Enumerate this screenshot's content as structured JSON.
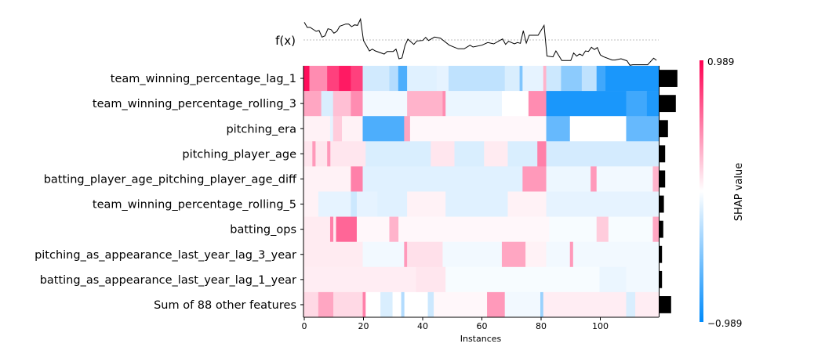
{
  "chart_data": {
    "type": "heatmap",
    "xlabel": "Instances",
    "x_ticks": [
      0,
      20,
      40,
      60,
      80,
      100
    ],
    "n_instances": 120,
    "fx_label": "f(x)",
    "colorbar": {
      "label": "SHAP value",
      "max_label": "0.989",
      "min_label": "−0.989",
      "max": 0.989,
      "min": -0.989,
      "colors": {
        "negative": "#008bfb",
        "zero": "#ffffff",
        "positive": "#ff0052"
      }
    },
    "features": [
      "team_winning_percentage_lag_1",
      "team_winning_percentage_rolling_3",
      "pitching_era",
      "pitching_player_age",
      "batting_player_age_pitching_player_age_diff",
      "team_winning_percentage_rolling_5",
      "batting_ops",
      "pitching_as_appearance_last_year_lag_3_year",
      "batting_as_appearance_last_year_lag_1_year",
      "Sum of 88 other features"
    ],
    "mean_abs_importance": [
      0.57,
      0.52,
      0.27,
      0.18,
      0.18,
      0.14,
      0.12,
      0.08,
      0.08,
      0.37
    ],
    "rows_segments": [
      [
        [
          0,
          2,
          0.95
        ],
        [
          2,
          8,
          0.45
        ],
        [
          8,
          12,
          0.75
        ],
        [
          12,
          16,
          0.9
        ],
        [
          16,
          20,
          0.75
        ],
        [
          20,
          29,
          -0.18
        ],
        [
          29,
          32,
          -0.3
        ],
        [
          32,
          35,
          -0.7
        ],
        [
          35,
          45,
          -0.12
        ],
        [
          45,
          49,
          -0.1
        ],
        [
          49,
          68,
          -0.25
        ],
        [
          68,
          73,
          -0.15
        ],
        [
          73,
          74,
          -0.5
        ],
        [
          74,
          81,
          -0.1
        ],
        [
          81,
          82,
          0.3
        ],
        [
          82,
          87,
          -0.2
        ],
        [
          87,
          94,
          -0.45
        ],
        [
          94,
          99,
          -0.25
        ],
        [
          99,
          102,
          -0.75
        ],
        [
          102,
          120,
          -0.9
        ]
      ],
      [
        [
          0,
          6,
          0.35
        ],
        [
          6,
          10,
          -0.15
        ],
        [
          10,
          16,
          0.25
        ],
        [
          16,
          20,
          0.45
        ],
        [
          20,
          35,
          -0.05
        ],
        [
          35,
          47,
          0.3
        ],
        [
          47,
          48,
          0.45
        ],
        [
          48,
          67,
          -0.08
        ],
        [
          67,
          76,
          0.0
        ],
        [
          76,
          82,
          0.45
        ],
        [
          82,
          109,
          -0.9
        ],
        [
          109,
          116,
          -0.75
        ],
        [
          116,
          120,
          -0.88
        ]
      ],
      [
        [
          0,
          9,
          0.05
        ],
        [
          9,
          10,
          -0.1
        ],
        [
          10,
          13,
          0.2
        ],
        [
          13,
          20,
          0.05
        ],
        [
          20,
          34,
          -0.7
        ],
        [
          34,
          36,
          0.35
        ],
        [
          36,
          82,
          0.03
        ],
        [
          82,
          90,
          -0.6
        ],
        [
          90,
          109,
          0.0
        ],
        [
          109,
          120,
          -0.6
        ]
      ],
      [
        [
          0,
          21,
          0.1
        ],
        [
          3,
          4,
          0.4
        ],
        [
          8,
          9,
          0.4
        ],
        [
          21,
          43,
          -0.15
        ],
        [
          43,
          51,
          0.1
        ],
        [
          51,
          61,
          -0.15
        ],
        [
          61,
          69,
          0.08
        ],
        [
          69,
          79,
          -0.15
        ],
        [
          79,
          82,
          0.5
        ],
        [
          82,
          120,
          -0.17
        ]
      ],
      [
        [
          0,
          16,
          0.05
        ],
        [
          16,
          20,
          0.5
        ],
        [
          20,
          74,
          -0.12
        ],
        [
          74,
          82,
          0.4
        ],
        [
          82,
          97,
          -0.07
        ],
        [
          97,
          99,
          0.4
        ],
        [
          99,
          118,
          -0.05
        ],
        [
          118,
          120,
          0.3
        ]
      ],
      [
        [
          0,
          5,
          0.05
        ],
        [
          5,
          16,
          -0.1
        ],
        [
          16,
          18,
          -0.2
        ],
        [
          18,
          25,
          -0.1
        ],
        [
          25,
          35,
          -0.12
        ],
        [
          35,
          48,
          0.05
        ],
        [
          48,
          69,
          -0.12
        ],
        [
          69,
          82,
          0.05
        ],
        [
          82,
          120,
          -0.1
        ]
      ],
      [
        [
          0,
          11,
          0.08
        ],
        [
          9,
          10,
          0.5
        ],
        [
          11,
          18,
          0.6
        ],
        [
          18,
          83,
          0.03
        ],
        [
          29,
          32,
          0.3
        ],
        [
          83,
          99,
          -0.03
        ],
        [
          99,
          103,
          0.2
        ],
        [
          103,
          118,
          -0.03
        ],
        [
          118,
          120,
          0.35
        ]
      ],
      [
        [
          0,
          20,
          0.08
        ],
        [
          20,
          34,
          -0.05
        ],
        [
          34,
          35,
          0.4
        ],
        [
          35,
          47,
          0.12
        ],
        [
          47,
          67,
          -0.05
        ],
        [
          67,
          75,
          0.35
        ],
        [
          75,
          82,
          0.05
        ],
        [
          82,
          120,
          -0.05
        ],
        [
          90,
          91,
          0.4
        ]
      ],
      [
        [
          0,
          38,
          0.07
        ],
        [
          38,
          48,
          0.1
        ],
        [
          48,
          100,
          -0.03
        ],
        [
          100,
          109,
          -0.08
        ],
        [
          109,
          120,
          -0.05
        ]
      ],
      [
        [
          0,
          20,
          0.15
        ],
        [
          5,
          10,
          0.35
        ],
        [
          20,
          21,
          0.5
        ],
        [
          21,
          42,
          0.0
        ],
        [
          26,
          30,
          -0.15
        ],
        [
          33,
          34,
          -0.3
        ],
        [
          42,
          44,
          -0.2
        ],
        [
          44,
          62,
          0.03
        ],
        [
          62,
          68,
          0.4
        ],
        [
          68,
          80,
          -0.05
        ],
        [
          80,
          81,
          -0.4
        ],
        [
          81,
          120,
          0.07
        ],
        [
          109,
          112,
          -0.15
        ]
      ]
    ],
    "fx_points": [
      [
        0,
        0.68
      ],
      [
        1,
        0.48
      ],
      [
        2,
        0.48
      ],
      [
        4,
        0.33
      ],
      [
        5,
        0.36
      ],
      [
        6,
        0.11
      ],
      [
        7,
        0.16
      ],
      [
        8,
        0.43
      ],
      [
        9,
        0.4
      ],
      [
        10,
        0.26
      ],
      [
        11,
        0.33
      ],
      [
        12,
        0.53
      ],
      [
        14,
        0.61
      ],
      [
        15,
        0.61
      ],
      [
        16,
        0.51
      ],
      [
        17,
        0.58
      ],
      [
        18,
        0.56
      ],
      [
        19,
        0.8
      ],
      [
        20,
        -0.02
      ],
      [
        22,
        -0.42
      ],
      [
        23,
        -0.35
      ],
      [
        24,
        -0.42
      ],
      [
        27,
        -0.54
      ],
      [
        28,
        -0.44
      ],
      [
        30,
        -0.44
      ],
      [
        31,
        -0.35
      ],
      [
        32,
        -0.72
      ],
      [
        33,
        -0.69
      ],
      [
        34,
        -0.22
      ],
      [
        35,
        0.03
      ],
      [
        37,
        -0.17
      ],
      [
        38,
        -0.04
      ],
      [
        40,
        -0.02
      ],
      [
        41,
        0.1
      ],
      [
        42,
        -0.02
      ],
      [
        44,
        0.11
      ],
      [
        46,
        0.07
      ],
      [
        49,
        -0.2
      ],
      [
        52,
        -0.34
      ],
      [
        54,
        -0.34
      ],
      [
        56,
        -0.2
      ],
      [
        57,
        -0.27
      ],
      [
        60,
        -0.2
      ],
      [
        62,
        -0.1
      ],
      [
        64,
        -0.15
      ],
      [
        67,
        0.04
      ],
      [
        68,
        -0.17
      ],
      [
        69,
        -0.05
      ],
      [
        71,
        -0.15
      ],
      [
        72,
        -0.1
      ],
      [
        73,
        -0.13
      ],
      [
        74,
        0.35
      ],
      [
        75,
        -0.12
      ],
      [
        76,
        0.18
      ],
      [
        79,
        0.18
      ],
      [
        81,
        0.56
      ],
      [
        82,
        -0.62
      ],
      [
        84,
        -0.65
      ],
      [
        85,
        -0.42
      ],
      [
        87,
        -0.79
      ],
      [
        90,
        -0.79
      ],
      [
        91,
        -0.5
      ],
      [
        92,
        -0.62
      ],
      [
        93,
        -0.54
      ],
      [
        94,
        -0.6
      ],
      [
        95,
        -0.42
      ],
      [
        96,
        -0.44
      ],
      [
        97,
        -0.28
      ],
      [
        98,
        -0.37
      ],
      [
        99,
        -0.29
      ],
      [
        100,
        -0.57
      ],
      [
        101,
        -0.64
      ],
      [
        104,
        -0.77
      ],
      [
        105,
        -0.77
      ],
      [
        107,
        -0.72
      ],
      [
        109,
        -0.8
      ],
      [
        110,
        -0.97
      ],
      [
        111,
        -0.95
      ],
      [
        116,
        -0.95
      ],
      [
        118,
        -0.7
      ],
      [
        119,
        -0.78
      ]
    ]
  }
}
